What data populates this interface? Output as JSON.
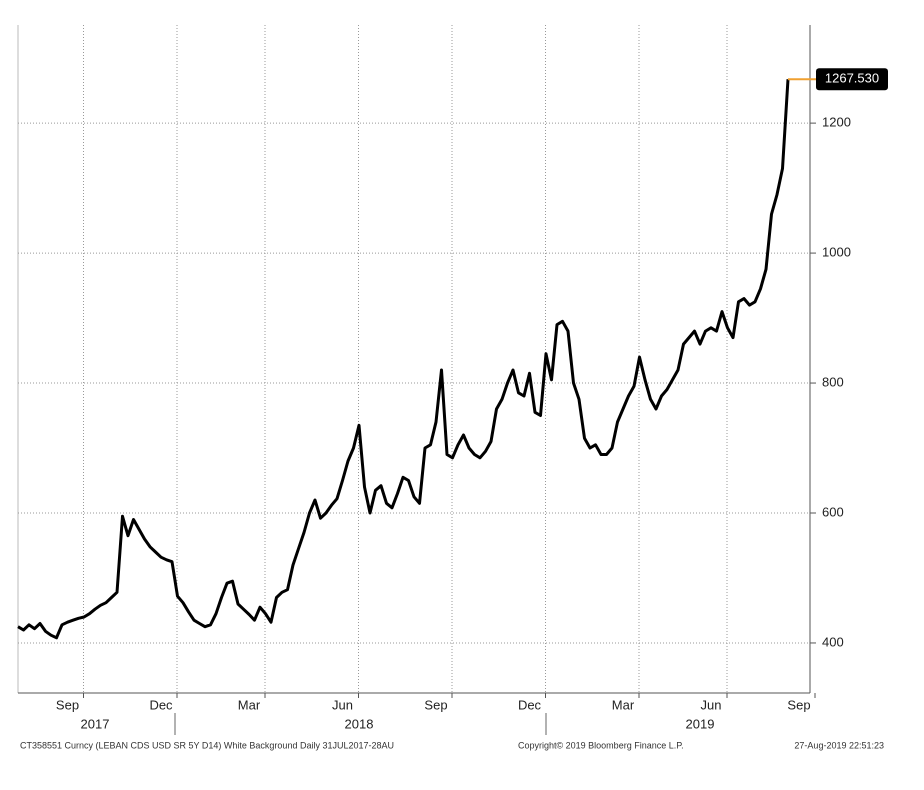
{
  "chart_data": {
    "type": "line",
    "categories": [
      null,
      null,
      null,
      null,
      null,
      null,
      null,
      null,
      null,
      "Sep",
      null,
      null,
      null,
      null,
      null,
      null,
      null,
      null,
      null,
      null,
      null,
      null,
      null,
      null,
      null,
      null,
      "Dec",
      null,
      null,
      null,
      null,
      null,
      null,
      null,
      null,
      null,
      null,
      null,
      null,
      null,
      null,
      null,
      "Mar",
      null,
      null,
      null,
      null,
      null,
      null,
      null,
      null,
      null,
      null,
      null,
      null,
      null,
      null,
      null,
      null,
      "Jun",
      null,
      null,
      null,
      null,
      null,
      null,
      null,
      null,
      null,
      null,
      null,
      null,
      null,
      null,
      null,
      null,
      "Sep",
      null,
      null,
      null,
      null,
      null,
      null,
      null,
      null,
      null,
      null,
      null,
      null,
      null,
      null,
      null,
      null,
      "Dec",
      null,
      null,
      null,
      null,
      null,
      null,
      null,
      null,
      null,
      null,
      null,
      null,
      null,
      null,
      null,
      null,
      "Mar",
      null,
      null,
      null,
      null,
      null,
      null,
      null,
      null,
      null,
      null,
      null,
      null,
      null,
      null,
      null,
      "Jun",
      null,
      null,
      null,
      null,
      null,
      null,
      null,
      null,
      null,
      null,
      null,
      null,
      null,
      null,
      null,
      "Sep",
      null,
      null
    ],
    "year_categories": [
      null,
      null,
      null,
      null,
      null,
      null,
      null,
      null,
      null,
      null,
      null,
      null,
      null,
      null,
      "2017",
      null,
      null,
      null,
      null,
      null,
      null,
      null,
      null,
      null,
      null,
      null,
      null,
      null,
      null,
      null,
      null,
      null,
      null,
      null,
      null,
      null,
      null,
      null,
      null,
      null,
      null,
      null,
      null,
      null,
      null,
      null,
      null,
      null,
      null,
      null,
      null,
      null,
      null,
      null,
      null,
      null,
      null,
      null,
      null,
      null,
      null,
      null,
      "2018",
      null,
      null,
      null,
      null,
      null,
      null,
      null,
      null,
      null,
      null,
      null,
      null,
      null,
      null,
      null,
      null,
      null,
      null,
      null,
      null,
      null,
      null,
      null,
      null,
      null,
      null,
      null,
      null,
      null,
      null,
      null,
      null,
      null,
      null,
      null,
      null,
      null,
      null,
      null,
      null,
      null,
      null,
      null,
      null,
      null,
      null,
      null,
      null,
      null,
      null,
      null,
      null,
      null,
      null,
      null,
      null,
      null,
      null,
      null,
      null,
      null,
      "2019",
      null,
      null,
      null,
      null,
      null,
      null,
      null,
      null,
      null,
      null,
      null,
      null,
      null,
      null,
      null,
      null,
      null,
      null,
      null,
      null,
      null,
      null,
      null,
      null
    ],
    "series": [
      {
        "name": "CT358551 Curncy",
        "color": "#000000",
        "values": [
          425,
          420,
          428,
          422,
          430,
          418,
          412,
          408,
          428,
          432,
          435,
          438,
          440,
          445,
          452,
          458,
          462,
          470,
          478,
          595,
          565,
          590,
          575,
          560,
          548,
          540,
          532,
          528,
          525,
          472,
          462,
          448,
          435,
          430,
          425,
          428,
          445,
          470,
          492,
          495,
          460,
          452,
          444,
          435,
          455,
          445,
          432,
          470,
          478,
          482,
          520,
          545,
          570,
          600,
          620,
          592,
          600,
          612,
          622,
          650,
          680,
          700,
          735,
          640,
          600,
          635,
          642,
          615,
          608,
          630,
          655,
          650,
          625,
          615,
          700,
          705,
          740,
          820,
          690,
          685,
          705,
          720,
          700,
          690,
          685,
          695,
          710,
          760,
          775,
          800,
          820,
          785,
          780,
          815,
          755,
          750,
          845,
          805,
          890,
          895,
          880,
          800,
          775,
          715,
          700,
          705,
          690,
          690,
          700,
          740,
          760,
          780,
          795,
          840,
          805,
          775,
          760,
          780,
          790,
          805,
          820,
          860,
          870,
          880,
          860,
          880,
          885,
          880,
          910,
          885,
          870,
          925,
          930,
          920,
          925,
          945,
          975,
          1060,
          1090,
          1130,
          1267.53,
          null,
          null,
          null,
          null
        ],
        "value_labels": [
          null,
          null,
          null,
          null,
          null,
          null,
          null,
          null,
          null,
          null,
          null,
          null,
          null,
          null,
          null,
          null,
          null,
          null,
          null,
          null,
          null,
          null,
          null,
          null,
          null,
          null,
          null,
          null,
          null,
          null,
          null,
          null,
          null,
          null,
          null,
          null,
          null,
          null,
          null,
          null,
          null,
          null,
          null,
          null,
          null,
          null,
          null,
          null,
          null,
          null,
          null,
          null,
          null,
          null,
          null,
          null,
          null,
          null,
          null,
          null,
          null,
          null,
          null,
          null,
          null,
          null,
          null,
          null,
          null,
          null,
          null,
          null,
          null,
          null,
          null,
          null,
          null,
          null,
          null,
          null,
          null,
          null,
          null,
          null,
          null,
          null,
          null,
          null,
          null,
          null,
          null,
          null,
          null,
          null,
          null,
          null,
          null,
          null,
          null,
          null,
          null,
          null,
          null,
          null,
          null,
          null,
          null,
          null,
          null,
          null,
          null,
          null,
          null,
          null,
          null,
          null,
          null,
          null,
          null,
          null,
          null,
          null,
          null,
          null,
          null,
          null,
          null,
          null,
          null,
          null,
          null,
          null,
          null,
          null,
          null,
          null,
          null,
          null,
          null,
          null,
          "1267.530",
          null,
          null,
          null,
          null
        ]
      }
    ],
    "ylim": [
      323,
      1351
    ],
    "yticks": [
      400,
      600,
      800,
      1000,
      1200
    ],
    "grid": true,
    "last_value_color": "#f0a030",
    "footer": {
      "left": "CT358551 Curncy (LEBAN CDS USD SR 5Y D14) White Background  Daily 31JUL2017-28AU",
      "center": "Copyright© 2019 Bloomberg Finance L.P.",
      "right": "27-Aug-2019 22:51:23"
    }
  }
}
